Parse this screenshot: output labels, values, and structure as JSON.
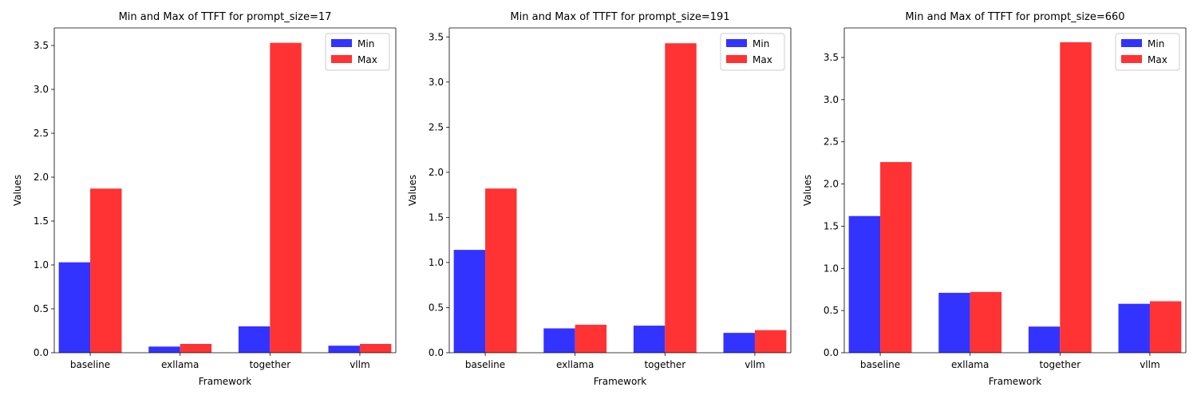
{
  "colors": {
    "min": "#3333ff",
    "max": "#ff3333"
  },
  "chart_data": [
    {
      "type": "bar",
      "title": "Min and Max of TTFT for prompt_size=17",
      "xlabel": "Framework",
      "ylabel": "Values",
      "categories": [
        "baseline",
        "exllama",
        "together",
        "vllm"
      ],
      "series": [
        {
          "name": "Min",
          "values": [
            1.03,
            0.07,
            0.3,
            0.08
          ]
        },
        {
          "name": "Max",
          "values": [
            1.87,
            0.1,
            3.53,
            0.1
          ]
        }
      ],
      "ylim": [
        0,
        3.7
      ],
      "yticks": [
        "0.0",
        "0.5",
        "1.0",
        "1.5",
        "2.0",
        "2.5",
        "3.0",
        "3.5"
      ],
      "legend": "top-right"
    },
    {
      "type": "bar",
      "title": "Min and Max of TTFT for prompt_size=191",
      "xlabel": "Framework",
      "ylabel": "Values",
      "categories": [
        "baseline",
        "exllama",
        "together",
        "vllm"
      ],
      "series": [
        {
          "name": "Min",
          "values": [
            1.14,
            0.27,
            0.3,
            0.22
          ]
        },
        {
          "name": "Max",
          "values": [
            1.82,
            0.31,
            3.43,
            0.25
          ]
        }
      ],
      "ylim": [
        0,
        3.6
      ],
      "yticks": [
        "0.0",
        "0.5",
        "1.0",
        "1.5",
        "2.0",
        "2.5",
        "3.0",
        "3.5"
      ],
      "legend": "top-right"
    },
    {
      "type": "bar",
      "title": "Min and Max of TTFT for prompt_size=660",
      "xlabel": "Framework",
      "ylabel": "Values",
      "categories": [
        "baseline",
        "exllama",
        "together",
        "vllm"
      ],
      "series": [
        {
          "name": "Min",
          "values": [
            1.62,
            0.71,
            0.31,
            0.58
          ]
        },
        {
          "name": "Max",
          "values": [
            2.26,
            0.72,
            3.68,
            0.61
          ]
        }
      ],
      "ylim": [
        0,
        3.85
      ],
      "yticks": [
        "0.0",
        "0.5",
        "1.0",
        "1.5",
        "2.0",
        "2.5",
        "3.0",
        "3.5"
      ],
      "legend": "top-right"
    }
  ]
}
